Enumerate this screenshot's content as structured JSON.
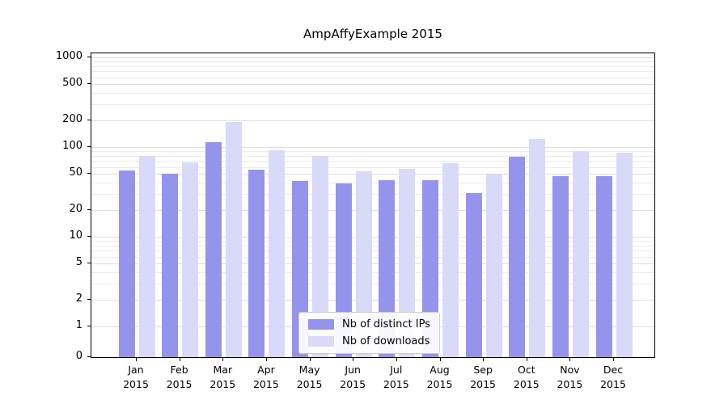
{
  "chart_data": {
    "type": "bar",
    "title": "AmpAffyExample 2015",
    "categories": [
      "Jan 2015",
      "Feb 2015",
      "Mar 2015",
      "Apr 2015",
      "May 2015",
      "Jun 2015",
      "Jul 2015",
      "Aug 2015",
      "Sep 2015",
      "Oct 2015",
      "Nov 2015",
      "Dec 2015"
    ],
    "series": [
      {
        "name": "Nb of distinct IPs",
        "color": "#9494ec",
        "values": [
          55,
          50,
          113,
          56,
          42,
          39,
          43,
          43,
          31,
          78,
          47,
          47
        ]
      },
      {
        "name": "Nb of downloads",
        "color": "#d9d9f8",
        "values": [
          80,
          67,
          190,
          92,
          79,
          54,
          57,
          66,
          50,
          122,
          91,
          86
        ]
      }
    ],
    "xlabel": "",
    "ylabel": "",
    "yscale": "symlog",
    "yticks": [
      0,
      1,
      2,
      5,
      10,
      20,
      50,
      100,
      200,
      500,
      1000
    ],
    "ylim": [
      0,
      1100
    ],
    "grid": true,
    "legend_position": "lower center"
  }
}
